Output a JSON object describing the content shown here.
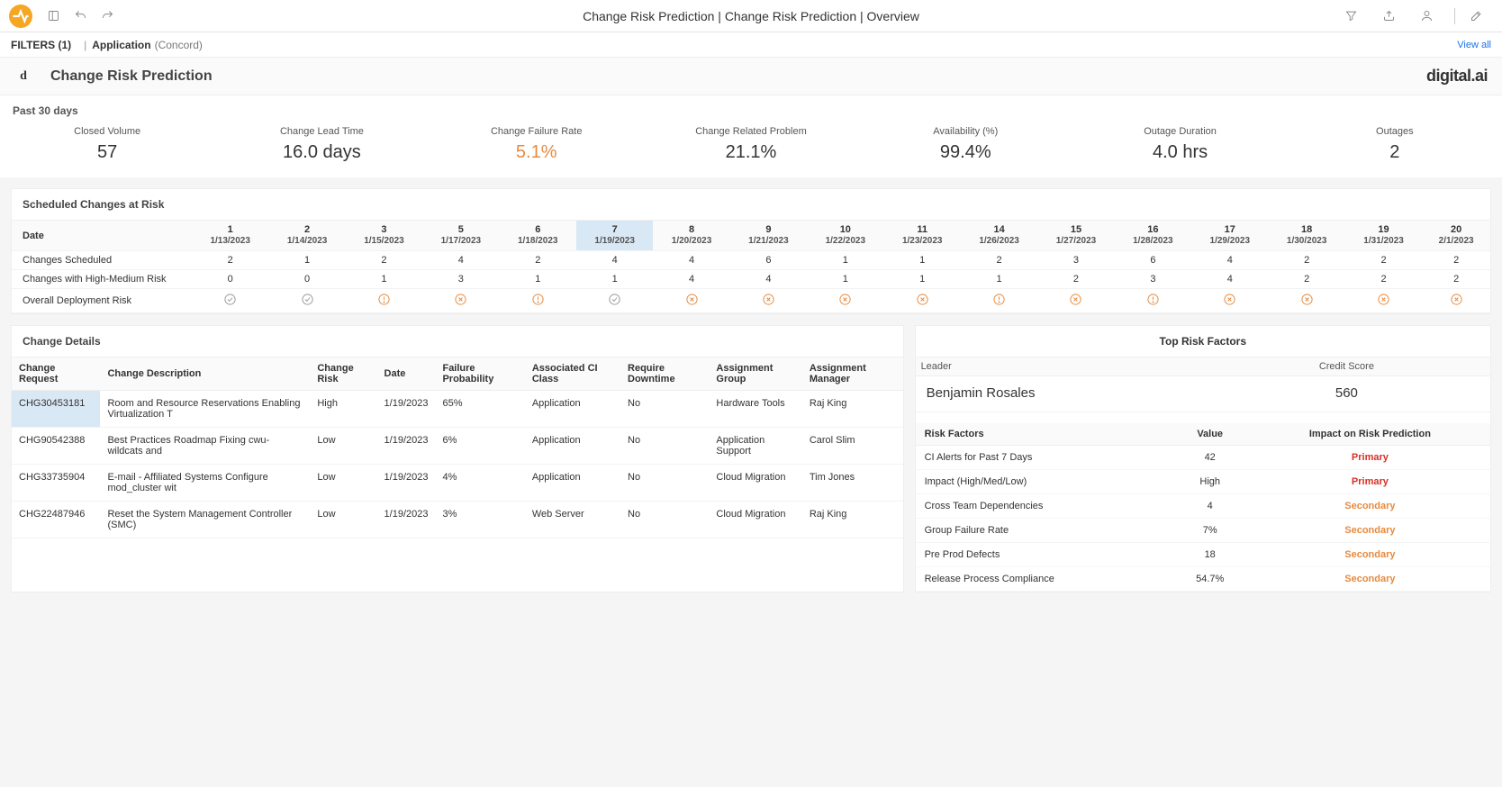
{
  "breadcrumb": "Change Risk Prediction | Change Risk Prediction | Overview",
  "filters": {
    "label": "FILTERS (1)",
    "appLabel": "Application",
    "appValue": "(Concord)",
    "viewAll": "View all"
  },
  "header": {
    "miniLogo": "d",
    "title": "Change Risk Prediction",
    "brand": "digital.ai"
  },
  "periodLabel": "Past 30 days",
  "kpis": [
    {
      "title": "Closed Volume",
      "value": "57",
      "alert": false
    },
    {
      "title": "Change Lead Time",
      "value": "16.0 days",
      "alert": false
    },
    {
      "title": "Change Failure Rate",
      "value": "5.1%",
      "alert": true
    },
    {
      "title": "Change Related Problem",
      "value": "21.1%",
      "alert": false
    },
    {
      "title": "Availability (%)",
      "value": "99.4%",
      "alert": false
    },
    {
      "title": "Outage Duration",
      "value": "4.0 hrs",
      "alert": false
    },
    {
      "title": "Outages",
      "value": "2",
      "alert": false
    }
  ],
  "scheduled": {
    "title": "Scheduled Changes at Risk",
    "dateLabel": "Date",
    "highlightedCol": 5,
    "columns": [
      {
        "num": "1",
        "date": "1/13/2023"
      },
      {
        "num": "2",
        "date": "1/14/2023"
      },
      {
        "num": "3",
        "date": "1/15/2023"
      },
      {
        "num": "5",
        "date": "1/17/2023"
      },
      {
        "num": "6",
        "date": "1/18/2023"
      },
      {
        "num": "7",
        "date": "1/19/2023"
      },
      {
        "num": "8",
        "date": "1/20/2023"
      },
      {
        "num": "9",
        "date": "1/21/2023"
      },
      {
        "num": "10",
        "date": "1/22/2023"
      },
      {
        "num": "11",
        "date": "1/23/2023"
      },
      {
        "num": "14",
        "date": "1/26/2023"
      },
      {
        "num": "15",
        "date": "1/27/2023"
      },
      {
        "num": "16",
        "date": "1/28/2023"
      },
      {
        "num": "17",
        "date": "1/29/2023"
      },
      {
        "num": "18",
        "date": "1/30/2023"
      },
      {
        "num": "19",
        "date": "1/31/2023"
      },
      {
        "num": "20",
        "date": "2/1/2023"
      }
    ],
    "rows": [
      {
        "label": "Changes Scheduled",
        "values": [
          "2",
          "1",
          "2",
          "4",
          "2",
          "4",
          "4",
          "6",
          "1",
          "1",
          "2",
          "3",
          "6",
          "4",
          "2",
          "2",
          "2"
        ]
      },
      {
        "label": "Changes with High-Medium Risk",
        "values": [
          "0",
          "0",
          "1",
          "3",
          "1",
          "1",
          "4",
          "4",
          "1",
          "1",
          "1",
          "2",
          "3",
          "4",
          "2",
          "2",
          "2"
        ]
      }
    ],
    "riskRowLabel": "Overall Deployment Risk",
    "riskIcons": [
      "ok",
      "ok",
      "warn",
      "fail",
      "warn",
      "ok",
      "fail",
      "fail",
      "fail",
      "fail",
      "warn",
      "fail",
      "warn",
      "fail",
      "fail",
      "fail",
      "fail"
    ]
  },
  "details": {
    "title": "Change Details",
    "headers": [
      "Change Request",
      "Change Description",
      "Change Risk",
      "Date",
      "Failure Probability",
      "Associated CI Class",
      "Require Downtime",
      "Assignment Group",
      "Assignment Manager"
    ],
    "rows": [
      {
        "selected": true,
        "cells": [
          "CHG30453181",
          "Room and Resource Reservations Enabling Virtualization T",
          "High",
          "1/19/2023",
          "65%",
          "Application",
          "No",
          "Hardware Tools",
          "Raj King"
        ]
      },
      {
        "selected": false,
        "cells": [
          "CHG90542388",
          "Best Practices Roadmap Fixing cwu-wildcats and",
          "Low",
          "1/19/2023",
          "6%",
          "Application",
          "No",
          "Application Support",
          "Carol Slim"
        ]
      },
      {
        "selected": false,
        "cells": [
          "CHG33735904",
          "E-mail - Affiliated Systems Configure mod_cluster wit",
          "Low",
          "1/19/2023",
          "4%",
          "Application",
          "No",
          "Cloud Migration",
          "Tim Jones"
        ]
      },
      {
        "selected": false,
        "cells": [
          "CHG22487946",
          "Reset the System Management Controller (SMC)",
          "Low",
          "1/19/2023",
          "3%",
          "Web Server",
          "No",
          "Cloud Migration",
          "Raj King"
        ]
      }
    ]
  },
  "riskFactors": {
    "title": "Top Risk Factors",
    "leaderLabel": "Leader",
    "leaderValue": "Benjamin Rosales",
    "creditLabel": "Credit Score",
    "creditValue": "560",
    "headers": [
      "Risk Factors",
      "Value",
      "Impact on Risk Prediction"
    ],
    "rows": [
      {
        "name": "CI Alerts for Past 7 Days",
        "value": "42",
        "impact": "Primary",
        "impactClass": "primary"
      },
      {
        "name": "Impact (High/Med/Low)",
        "value": "High",
        "impact": "Primary",
        "impactClass": "primary"
      },
      {
        "name": "Cross Team Dependencies",
        "value": "4",
        "impact": "Secondary",
        "impactClass": "secondary"
      },
      {
        "name": "Group Failure Rate",
        "value": "7%",
        "impact": "Secondary",
        "impactClass": "secondary"
      },
      {
        "name": "Pre Prod Defects",
        "value": "18",
        "impact": "Secondary",
        "impactClass": "secondary"
      },
      {
        "name": "Release Process Compliance",
        "value": "54.7%",
        "impact": "Secondary",
        "impactClass": "secondary"
      }
    ]
  }
}
